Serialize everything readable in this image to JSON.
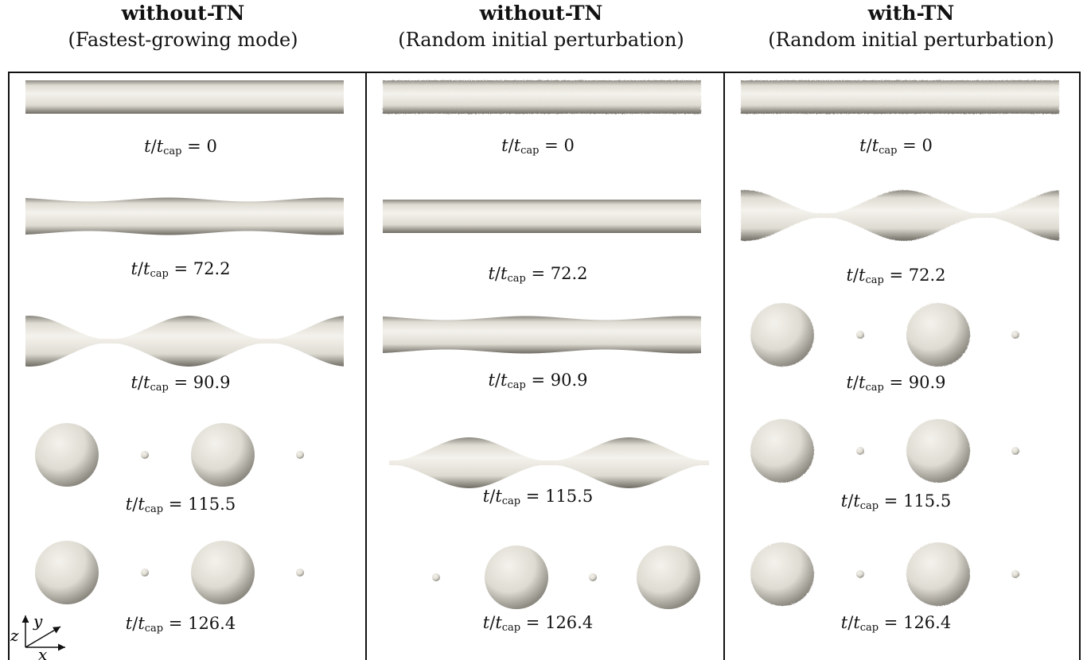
{
  "columns": [
    {
      "title": "without-TN",
      "subtitle": "(Fastest-growing mode)",
      "frames": [
        {
          "shape": "cylinder",
          "time": "0"
        },
        {
          "shape": "wavy-thin",
          "time": "72.2"
        },
        {
          "shape": "necking",
          "time": "90.9"
        },
        {
          "shape": "drops",
          "time": "115.5"
        },
        {
          "shape": "drops",
          "time": "126.4"
        }
      ]
    },
    {
      "title": "without-TN",
      "subtitle": "(Random initial perturbation)",
      "frames": [
        {
          "shape": "cylinder-rough",
          "time": "0"
        },
        {
          "shape": "cylinder",
          "time": "72.2"
        },
        {
          "shape": "wavy-thin",
          "time": "90.9"
        },
        {
          "shape": "necking-offset",
          "time": "115.5"
        },
        {
          "shape": "drops-offset",
          "time": "126.4"
        }
      ]
    },
    {
      "title": "with-TN",
      "subtitle": "(Random initial perturbation)",
      "frames": [
        {
          "shape": "cylinder-rough",
          "time": "0"
        },
        {
          "shape": "necking-rough",
          "time": "72.2"
        },
        {
          "shape": "drops-rough",
          "time": "90.9"
        },
        {
          "shape": "drops-rough",
          "time": "115.5"
        },
        {
          "shape": "drops-rough",
          "time": "126.4"
        }
      ]
    }
  ],
  "time_label": {
    "var": "t",
    "sub_var": "t",
    "sub": "cap",
    "eq": "="
  },
  "axes": {
    "x": "x",
    "y": "y",
    "z": "z"
  },
  "colors": {
    "fluid": "#dedbd2",
    "shade": "#8a877f",
    "highlight": "#f4f2ec",
    "rule": "#111111"
  }
}
